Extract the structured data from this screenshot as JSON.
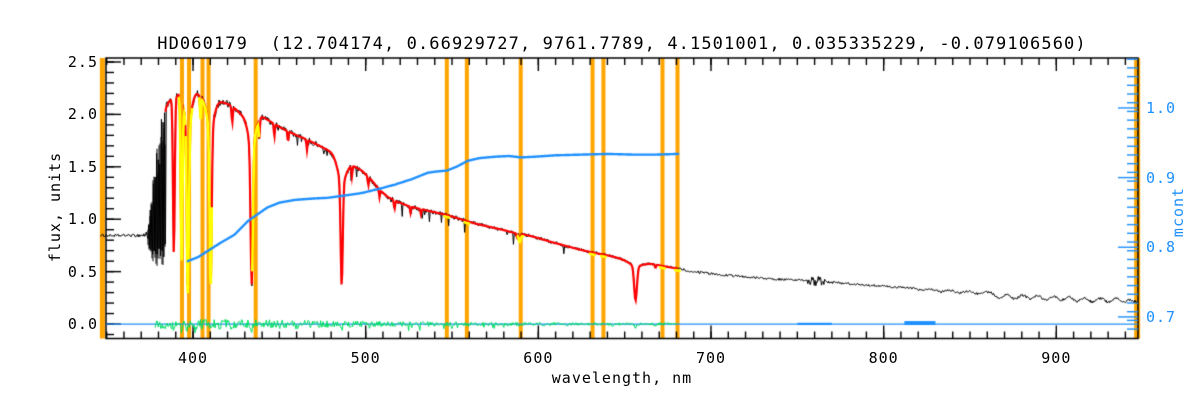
{
  "title": "HD060179  (12.704174, 0.66929727, 9761.7789, 4.1501001, 0.035335229, -0.079106560)",
  "axes": {
    "x_label": "wavelength, nm",
    "y_left_label": "flux, units",
    "y_right_label": "mcont"
  },
  "chart_data": {
    "type": "line",
    "title": "HD060179  (12.704174, 0.66929727, 9761.7789, 4.1501001, 0.035335229, -0.079106560)",
    "xlabel": "wavelength, nm",
    "ylabel_left": "flux, units",
    "ylabel_right": "mcont",
    "x_range": [
      349.6,
      947.3
    ],
    "y_flux_range": [
      -0.138,
      2.538
    ],
    "y_mcont_range": [
      0.669,
      1.0717
    ],
    "grid": false,
    "legend": "none",
    "colors": {
      "spectrum": "#000000",
      "fit": "#ff0000",
      "residual": "#00df60",
      "mcont": "#1e90ff",
      "mask": "#ffa500",
      "continuum_fit": "#ffff00",
      "axis": "#000000"
    },
    "ticks": {
      "x_major": [
        {
          "v": 400,
          "label": "400"
        },
        {
          "v": 500,
          "label": "500"
        },
        {
          "v": 600,
          "label": "600"
        },
        {
          "v": 700,
          "label": "700"
        },
        {
          "v": 800,
          "label": "800"
        },
        {
          "v": 900,
          "label": "900"
        }
      ],
      "x_minor": [
        350,
        940,
        10
      ],
      "flux_major": [
        {
          "v": 0.0,
          "label": "0.0"
        },
        {
          "v": 0.5,
          "label": "0.5"
        },
        {
          "v": 1.0,
          "label": "1.0"
        },
        {
          "v": 1.5,
          "label": "1.5"
        },
        {
          "v": 2.0,
          "label": "2.0"
        },
        {
          "v": 2.5,
          "label": "2.5"
        }
      ],
      "flux_minor": [
        -0.1,
        2.5,
        0.1
      ],
      "mcont_major": [
        {
          "v": 0.7,
          "label": "0.7"
        },
        {
          "v": 0.8,
          "label": "0.8"
        },
        {
          "v": 0.9,
          "label": "0.9"
        },
        {
          "v": 1.0,
          "label": "1.0"
        }
      ],
      "mcont_minor": [
        0.67,
        1.07,
        0.0125
      ]
    },
    "masks": [
      {
        "nm": 347.5,
        "w": 5
      },
      {
        "nm": 393.6,
        "w": 4
      },
      {
        "nm": 397.7,
        "w": 4
      },
      {
        "nm": 405.5,
        "w": 4
      },
      {
        "nm": 409.0,
        "w": 4
      },
      {
        "nm": 436.3,
        "w": 4
      },
      {
        "nm": 547.0,
        "w": 4
      },
      {
        "nm": 558.6,
        "w": 4
      },
      {
        "nm": 589.8,
        "w": 4
      },
      {
        "nm": 631.4,
        "w": 4
      },
      {
        "nm": 637.7,
        "w": 4
      },
      {
        "nm": 671.9,
        "w": 4
      },
      {
        "nm": 680.6,
        "w": 4
      },
      {
        "nm": 946.8,
        "w": 6
      }
    ],
    "spectrum": {
      "continuum": [
        [
          346,
          0.845
        ],
        [
          356,
          0.843
        ],
        [
          362,
          0.846
        ],
        [
          368,
          0.845
        ],
        [
          371,
          0.848
        ],
        [
          374,
          0.85
        ],
        [
          384.3,
          2.06
        ],
        [
          386,
          2.12
        ],
        [
          388,
          2.15
        ],
        [
          391,
          2.18
        ],
        [
          393,
          2.22
        ],
        [
          395,
          2.2
        ],
        [
          399,
          2.18
        ],
        [
          402,
          2.2
        ],
        [
          404,
          2.18
        ],
        [
          407,
          2.15
        ],
        [
          412,
          2.12
        ],
        [
          416,
          2.12
        ],
        [
          420,
          2.1
        ],
        [
          424,
          2.06
        ],
        [
          428,
          2.0
        ],
        [
          432,
          1.97
        ],
        [
          436,
          1.99
        ],
        [
          440,
          1.98
        ],
        [
          445,
          1.93
        ],
        [
          450,
          1.88
        ],
        [
          455,
          1.84
        ],
        [
          460,
          1.8
        ],
        [
          466,
          1.76
        ],
        [
          472,
          1.71
        ],
        [
          478,
          1.66
        ],
        [
          483,
          1.62
        ],
        [
          488,
          1.56
        ],
        [
          493,
          1.51
        ],
        [
          498,
          1.46
        ],
        [
          503,
          1.38
        ],
        [
          508,
          1.28
        ],
        [
          513,
          1.21
        ],
        [
          518,
          1.17
        ],
        [
          524,
          1.13
        ],
        [
          531,
          1.1
        ],
        [
          539,
          1.07
        ],
        [
          547,
          1.04
        ],
        [
          555,
          1.0
        ],
        [
          563,
          0.96
        ],
        [
          571,
          0.93
        ],
        [
          579,
          0.9
        ],
        [
          586,
          0.87
        ],
        [
          593,
          0.85
        ],
        [
          600,
          0.82
        ],
        [
          608,
          0.78
        ],
        [
          616,
          0.745
        ],
        [
          624,
          0.71
        ],
        [
          632,
          0.68
        ],
        [
          640,
          0.655
        ],
        [
          648,
          0.625
        ],
        [
          654,
          0.61
        ],
        [
          660,
          0.595
        ],
        [
          666,
          0.575
        ],
        [
          673,
          0.55
        ],
        [
          682,
          0.525
        ],
        [
          690,
          0.5
        ],
        [
          700,
          0.48
        ],
        [
          710,
          0.465
        ],
        [
          722,
          0.448
        ],
        [
          734,
          0.432
        ],
        [
          746,
          0.42
        ],
        [
          755,
          0.412
        ],
        [
          761,
          0.408
        ],
        [
          770,
          0.398
        ],
        [
          780,
          0.385
        ],
        [
          790,
          0.372
        ],
        [
          800,
          0.36
        ],
        [
          812,
          0.347
        ],
        [
          824,
          0.335
        ],
        [
          836,
          0.323
        ],
        [
          848,
          0.313
        ],
        [
          860,
          0.305
        ],
        [
          872,
          0.297
        ],
        [
          884,
          0.289
        ],
        [
          896,
          0.282
        ],
        [
          908,
          0.276
        ],
        [
          920,
          0.27
        ],
        [
          933,
          0.263
        ],
        [
          947,
          0.255
        ]
      ],
      "lines": [
        [
          388.9,
          1.5,
          0.5
        ],
        [
          393.4,
          1.55,
          0.5
        ],
        [
          397.0,
          1.6,
          0.6
        ],
        [
          397.0,
          0.3,
          1.8
        ],
        [
          410.2,
          1.5,
          0.6
        ],
        [
          410.2,
          0.25,
          2.0
        ],
        [
          434.0,
          1.35,
          0.65
        ],
        [
          434.0,
          0.25,
          2.2
        ],
        [
          486.1,
          1.0,
          0.6
        ],
        [
          486.1,
          0.22,
          2.5
        ],
        [
          656.3,
          0.33,
          0.8
        ],
        [
          656.3,
          0.05,
          4.0
        ],
        [
          589.2,
          0.06,
          0.5
        ],
        [
          422.7,
          0.15,
          0.35
        ],
        [
          404.4,
          0.2,
          0.3
        ],
        [
          438.4,
          0.18,
          0.3
        ],
        [
          447.1,
          0.12,
          0.3
        ],
        [
          455.0,
          0.1,
          0.3
        ],
        [
          466.0,
          0.1,
          0.3
        ],
        [
          492.0,
          0.1,
          0.3
        ],
        [
          501.5,
          0.08,
          0.3
        ],
        [
          508.0,
          0.07,
          0.3
        ],
        [
          516.7,
          0.08,
          0.35
        ],
        [
          526.0,
          0.06,
          0.3
        ],
        [
          532.0,
          0.05,
          0.3
        ],
        [
          587.5,
          0.04,
          0.3
        ],
        [
          667.8,
          0.035,
          0.3
        ]
      ],
      "scallops": [
        [
          822,
          0.015,
          2.0
        ],
        [
          833,
          0.018,
          2.0
        ],
        [
          844,
          0.02,
          2.0
        ],
        [
          855,
          0.022,
          2.0
        ],
        [
          867,
          0.05,
          2.4
        ],
        [
          876,
          0.055,
          2.4
        ],
        [
          885,
          0.05,
          2.4
        ],
        [
          894,
          0.055,
          2.4
        ],
        [
          903,
          0.05,
          2.4
        ],
        [
          912,
          0.055,
          2.4
        ],
        [
          921,
          0.06,
          2.4
        ],
        [
          930,
          0.055,
          2.4
        ],
        [
          939,
          0.05,
          2.4
        ],
        [
          946,
          0.04,
          2.0
        ]
      ],
      "noise_amp": [
        [
          346,
          0.012
        ],
        [
          362,
          0.013
        ],
        [
          368,
          0.015
        ],
        [
          371,
          0.022
        ],
        [
          374,
          0.05
        ],
        [
          384.3,
          0.04
        ],
        [
          395,
          0.038
        ],
        [
          410,
          0.036
        ],
        [
          430,
          0.032
        ],
        [
          460,
          0.028
        ],
        [
          490,
          0.026
        ],
        [
          520,
          0.022
        ],
        [
          550,
          0.02
        ],
        [
          580,
          0.018
        ],
        [
          610,
          0.016
        ],
        [
          640,
          0.014
        ],
        [
          670,
          0.013
        ],
        [
          700,
          0.012
        ],
        [
          730,
          0.011
        ],
        [
          754,
          0.012
        ],
        [
          757,
          0.045
        ],
        [
          763,
          0.05
        ],
        [
          767,
          0.022
        ],
        [
          772,
          0.011
        ],
        [
          800,
          0.01
        ],
        [
          830,
          0.01
        ],
        [
          860,
          0.011
        ],
        [
          890,
          0.012
        ],
        [
          920,
          0.012
        ],
        [
          947,
          0.013
        ]
      ],
      "chaos": {
        "range": [
          374,
          384.3
        ],
        "hi": [
          [
            374,
            0.92
          ],
          [
            375.5,
            1.15
          ],
          [
            377,
            1.45
          ],
          [
            378.5,
            1.65
          ],
          [
            380,
            1.82
          ],
          [
            381.5,
            1.95
          ],
          [
            383,
            2.05
          ],
          [
            384.3,
            2.1
          ]
        ],
        "lo": [
          [
            374,
            0.75
          ],
          [
            375.5,
            0.64
          ],
          [
            377,
            0.57
          ],
          [
            378.5,
            0.53
          ],
          [
            380,
            0.52
          ],
          [
            381.5,
            0.54
          ],
          [
            383,
            0.57
          ],
          [
            384.3,
            0.62
          ]
        ]
      },
      "x_start_nm": 346.5
    },
    "fit": {
      "range": [
        384.0,
        681.0
      ]
    },
    "yellow_segments": {
      "halfwidth_nm": 2.0,
      "centers": [
        393.6,
        397.7,
        405.5,
        409.0,
        436.3,
        547.0,
        558.6,
        589.8,
        631.4,
        637.7,
        671.9,
        680.6
      ]
    },
    "residual": {
      "range": [
        378,
        681
      ],
      "amp": [
        [
          378,
          0.045
        ],
        [
          400,
          0.05
        ],
        [
          440,
          0.042
        ],
        [
          480,
          0.032
        ],
        [
          520,
          0.025
        ],
        [
          560,
          0.02
        ],
        [
          600,
          0.016
        ],
        [
          640,
          0.013
        ],
        [
          681,
          0.012
        ]
      ],
      "spikes": [
        [
          388.9,
          0.09
        ],
        [
          393.4,
          0.07
        ],
        [
          397.0,
          0.1
        ],
        [
          401.0,
          0.05
        ],
        [
          410.2,
          0.09
        ],
        [
          416.0,
          0.05
        ],
        [
          422.7,
          0.06
        ],
        [
          434.0,
          0.1
        ],
        [
          440.0,
          0.05
        ],
        [
          450.0,
          0.045
        ],
        [
          460.0,
          0.04
        ],
        [
          486.1,
          0.085
        ],
        [
          492.0,
          0.04
        ],
        [
          502.0,
          0.04
        ],
        [
          516.7,
          0.035
        ],
        [
          527.0,
          0.03
        ],
        [
          545.0,
          0.03
        ],
        [
          560.0,
          0.025
        ],
        [
          589.2,
          0.045
        ],
        [
          603.0,
          0.05
        ],
        [
          617.0,
          0.03
        ],
        [
          643.0,
          0.05
        ],
        [
          656.3,
          0.07
        ],
        [
          668.0,
          0.03
        ]
      ],
      "spike_sigma_nm": 0.45
    },
    "zero_line": {
      "flux": 0.0,
      "bumps": [
        [
          750,
          770,
          0.012
        ],
        [
          812,
          830,
          0.028
        ]
      ]
    },
    "mcont_curve": {
      "points": [
        [
          397,
          0.78
        ],
        [
          403,
          0.786
        ],
        [
          410,
          0.797
        ],
        [
          417,
          0.808
        ],
        [
          424,
          0.818
        ],
        [
          432,
          0.838
        ],
        [
          443,
          0.857
        ],
        [
          450,
          0.864
        ],
        [
          459,
          0.868
        ],
        [
          470,
          0.87
        ],
        [
          478,
          0.871
        ],
        [
          490,
          0.875
        ],
        [
          498,
          0.878
        ],
        [
          508,
          0.884
        ],
        [
          517,
          0.89
        ],
        [
          527,
          0.898
        ],
        [
          536,
          0.907
        ],
        [
          542,
          0.909
        ],
        [
          547,
          0.91
        ],
        [
          553,
          0.916
        ],
        [
          559,
          0.924
        ],
        [
          566,
          0.928
        ],
        [
          575,
          0.93
        ],
        [
          583,
          0.931
        ],
        [
          590,
          0.929
        ],
        [
          598,
          0.93
        ],
        [
          610,
          0.932
        ],
        [
          625,
          0.933
        ],
        [
          640,
          0.934
        ],
        [
          655,
          0.933
        ],
        [
          668,
          0.933
        ],
        [
          681,
          0.934
        ]
      ]
    }
  }
}
